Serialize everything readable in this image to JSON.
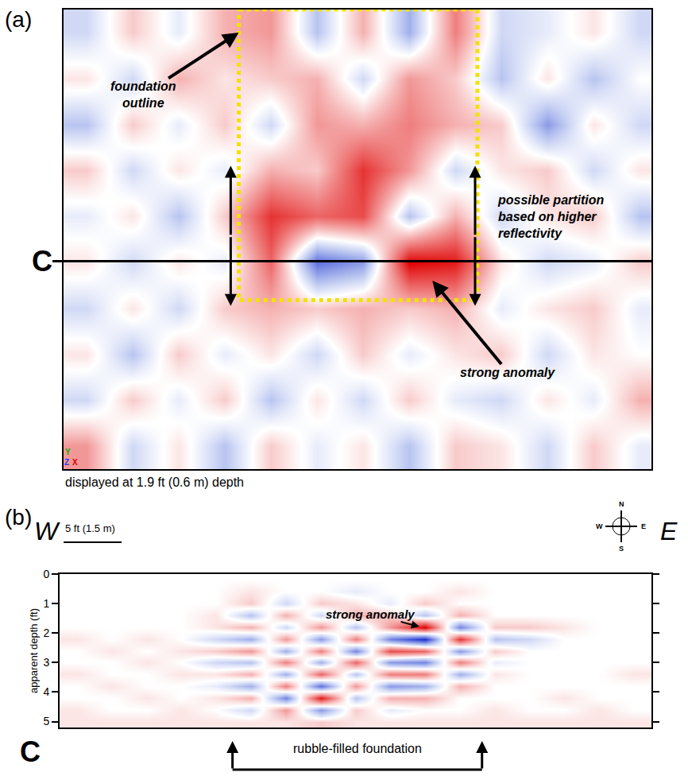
{
  "chart_data": [
    {
      "type": "heatmap",
      "label": "(a)",
      "x": [
        2,
        6,
        10,
        14,
        18,
        22,
        26,
        30,
        34,
        38,
        42,
        46,
        50
      ],
      "y": [
        2,
        6,
        10,
        14,
        18,
        22,
        26,
        30,
        34,
        38
      ],
      "z": [
        [
          -0.2,
          0.2,
          -0.1,
          0.3,
          0.4,
          -0.3,
          0.3,
          -0.4,
          0.5,
          -0.2,
          -0.1,
          0.1,
          -0.2
        ],
        [
          0.1,
          -0.2,
          0.3,
          0.1,
          0.2,
          0.3,
          -0.2,
          0.4,
          0.2,
          -0.3,
          0.1,
          -0.3,
          0.0
        ],
        [
          -0.3,
          0.2,
          -0.1,
          0.2,
          -0.2,
          0.4,
          0.3,
          0.5,
          0.3,
          0.2,
          -0.5,
          0.1,
          -0.2
        ],
        [
          0.2,
          -0.2,
          0.1,
          -0.1,
          0.3,
          0.2,
          0.8,
          0.4,
          -0.2,
          0.1,
          0.2,
          -0.2,
          0.1
        ],
        [
          -0.1,
          0.1,
          -0.3,
          0.2,
          0.8,
          0.6,
          0.7,
          -0.3,
          0.3,
          -0.2,
          0.1,
          0.2,
          -0.3
        ],
        [
          0.1,
          -0.2,
          0.1,
          -0.1,
          0.6,
          -0.7,
          -0.5,
          1.0,
          0.9,
          0.1,
          -0.2,
          -0.1,
          0.2
        ],
        [
          -0.2,
          0.1,
          -0.2,
          0.2,
          0.3,
          0.2,
          0.3,
          0.2,
          0.3,
          -0.1,
          0.1,
          0.2,
          -0.1
        ],
        [
          0.1,
          -0.3,
          0.2,
          -0.1,
          0.1,
          -0.2,
          0.2,
          -0.1,
          0.1,
          0.2,
          -0.2,
          0.1,
          0.0
        ],
        [
          -0.2,
          0.2,
          -0.1,
          0.2,
          -0.3,
          0.1,
          -0.2,
          0.2,
          -0.1,
          -0.2,
          0.1,
          -0.1,
          0.3
        ],
        [
          0.4,
          -0.2,
          0.1,
          -0.3,
          0.2,
          -0.1,
          0.1,
          -0.3,
          0.2,
          0.1,
          -0.2,
          0.2,
          -0.1
        ]
      ],
      "zlim": [
        -1,
        1
      ],
      "xlim": [
        0,
        51
      ],
      "ylim": [
        0,
        40
      ],
      "tick_labels": false,
      "caption": "displayed at 1.9 ft (0.6 m) depth",
      "foundation_outline": {
        "x": [
          15.2,
          35.9
        ],
        "y": [
          0,
          25.3
        ],
        "label": "foundation\noutline",
        "color": "#f2e200"
      },
      "partition": {
        "x": [
          14.5,
          35.7
        ],
        "y": [
          13.6,
          25.8
        ],
        "label": "possible partition\nbased on higher\nreflectivity"
      },
      "anomaly": {
        "x": 32,
        "y": 23.6,
        "label": "strong anomaly"
      },
      "profile_line": {
        "label": "C",
        "y": 21.9
      },
      "axis_icon": [
        {
          "text": "Y",
          "color": "#00b000"
        },
        {
          "text": "Z",
          "color": "#2040ff"
        },
        {
          "text": "X",
          "color": "#e00000"
        }
      ]
    },
    {
      "type": "heatmap",
      "label": "(b)",
      "x": [
        1.5,
        4.5,
        7.5,
        10.5,
        13.5,
        16.5,
        19.5,
        22.5,
        25.5,
        28.5,
        31.5,
        34.5,
        37.5,
        40.5,
        43.5,
        46.5,
        49.5
      ],
      "y": [
        0.2,
        0.6,
        1.0,
        1.4,
        1.8,
        2.2,
        2.6,
        3.0,
        3.4,
        3.8,
        4.2,
        4.6,
        5.0
      ],
      "z": [
        [
          0,
          0,
          0,
          0,
          0,
          0,
          0,
          0,
          0,
          0,
          0,
          0,
          0,
          0,
          0,
          0,
          0
        ],
        [
          0,
          0,
          0,
          0,
          0,
          0.1,
          0,
          0,
          -0.1,
          0,
          0,
          0.1,
          0,
          0,
          0,
          0,
          0
        ],
        [
          0,
          0,
          0,
          0,
          0,
          0.2,
          -0.2,
          0.2,
          0.1,
          -0.1,
          0.2,
          0,
          0,
          0,
          0,
          0,
          0
        ],
        [
          0,
          0,
          0,
          0,
          0.1,
          -0.3,
          0.3,
          -0.2,
          0.3,
          0.2,
          -0.3,
          0.3,
          0,
          0,
          0,
          0,
          0
        ],
        [
          0,
          0,
          0,
          0,
          0.1,
          0.3,
          -0.2,
          0.4,
          -0.3,
          0.4,
          1.0,
          -0.6,
          0.2,
          0.2,
          0.1,
          0,
          0
        ],
        [
          0.1,
          0,
          0.1,
          0,
          -0.2,
          -0.4,
          0.4,
          -0.5,
          0.5,
          -0.6,
          -1.0,
          0.8,
          -0.3,
          -0.2,
          0,
          0,
          0
        ],
        [
          0,
          0.1,
          0,
          0.1,
          0.2,
          0.4,
          -0.4,
          0.5,
          -0.6,
          0.7,
          0.6,
          -0.5,
          0.2,
          0,
          0,
          0,
          0
        ],
        [
          0,
          0,
          0.1,
          0,
          -0.2,
          -0.3,
          0.5,
          -0.4,
          0.6,
          -0.5,
          -0.6,
          0.5,
          -0.1,
          0,
          0,
          0,
          0
        ],
        [
          0.1,
          0,
          0,
          0.1,
          0.1,
          0.3,
          -0.4,
          0.6,
          -0.3,
          0.5,
          0.5,
          -0.4,
          0.1,
          0,
          0,
          0,
          0.1
        ],
        [
          0,
          0.1,
          0,
          0,
          -0.1,
          -0.4,
          0.5,
          -0.7,
          0.4,
          -0.5,
          -0.4,
          0.3,
          0,
          0,
          0,
          0,
          0
        ],
        [
          0,
          0,
          0.1,
          0,
          0.1,
          0.3,
          -0.6,
          0.9,
          -0.3,
          0.3,
          0.3,
          0,
          0,
          0,
          0.1,
          0,
          0
        ],
        [
          0.1,
          0,
          0,
          0.1,
          0,
          -0.2,
          0.4,
          -0.5,
          0.2,
          -0.1,
          0,
          0,
          0.1,
          0,
          0,
          0.1,
          0
        ],
        [
          0.1,
          0.1,
          0.1,
          0.1,
          0.1,
          0.1,
          0.1,
          0.2,
          0.1,
          0.1,
          0.1,
          0.1,
          0.1,
          0.1,
          0.1,
          0.1,
          0.1
        ]
      ],
      "zlim": [
        -1,
        1
      ],
      "xlim": [
        0,
        51
      ],
      "ylim": [
        0,
        5.2
      ],
      "yticks": [
        0,
        1,
        2,
        3,
        4,
        5
      ],
      "y_label": "apparent depth (ft)",
      "tick_labels": "y",
      "direction": [
        "W",
        "E"
      ],
      "compass": [
        "N",
        "E",
        "S",
        "W"
      ],
      "scale_bar": {
        "length": 5,
        "label": "5 ft (1.5 m)"
      },
      "anomaly": {
        "x": 31,
        "y": 1.78,
        "label": "strong anomaly"
      },
      "profile_label": "C",
      "foundation": {
        "x": [
          14.9,
          36.4
        ],
        "label": "rubble-filled foundation"
      }
    }
  ]
}
